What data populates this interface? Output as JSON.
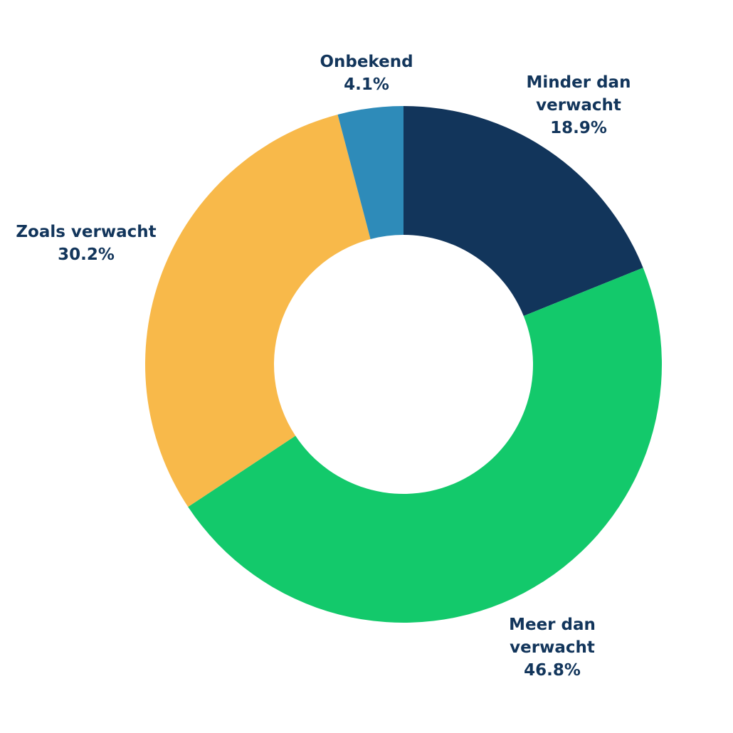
{
  "chart_data": {
    "type": "donut",
    "categories": [
      "Minder dan verwacht",
      "Meer dan verwacht",
      "Zoals verwacht",
      "Onbekend"
    ],
    "values": [
      18.9,
      46.8,
      30.2,
      4.1
    ],
    "value_labels": [
      "18.9%",
      "46.8%",
      "30.2%",
      "4.1%"
    ],
    "colors": [
      "#12355b",
      "#13c96b",
      "#f8b94a",
      "#2e8bb9"
    ]
  }
}
